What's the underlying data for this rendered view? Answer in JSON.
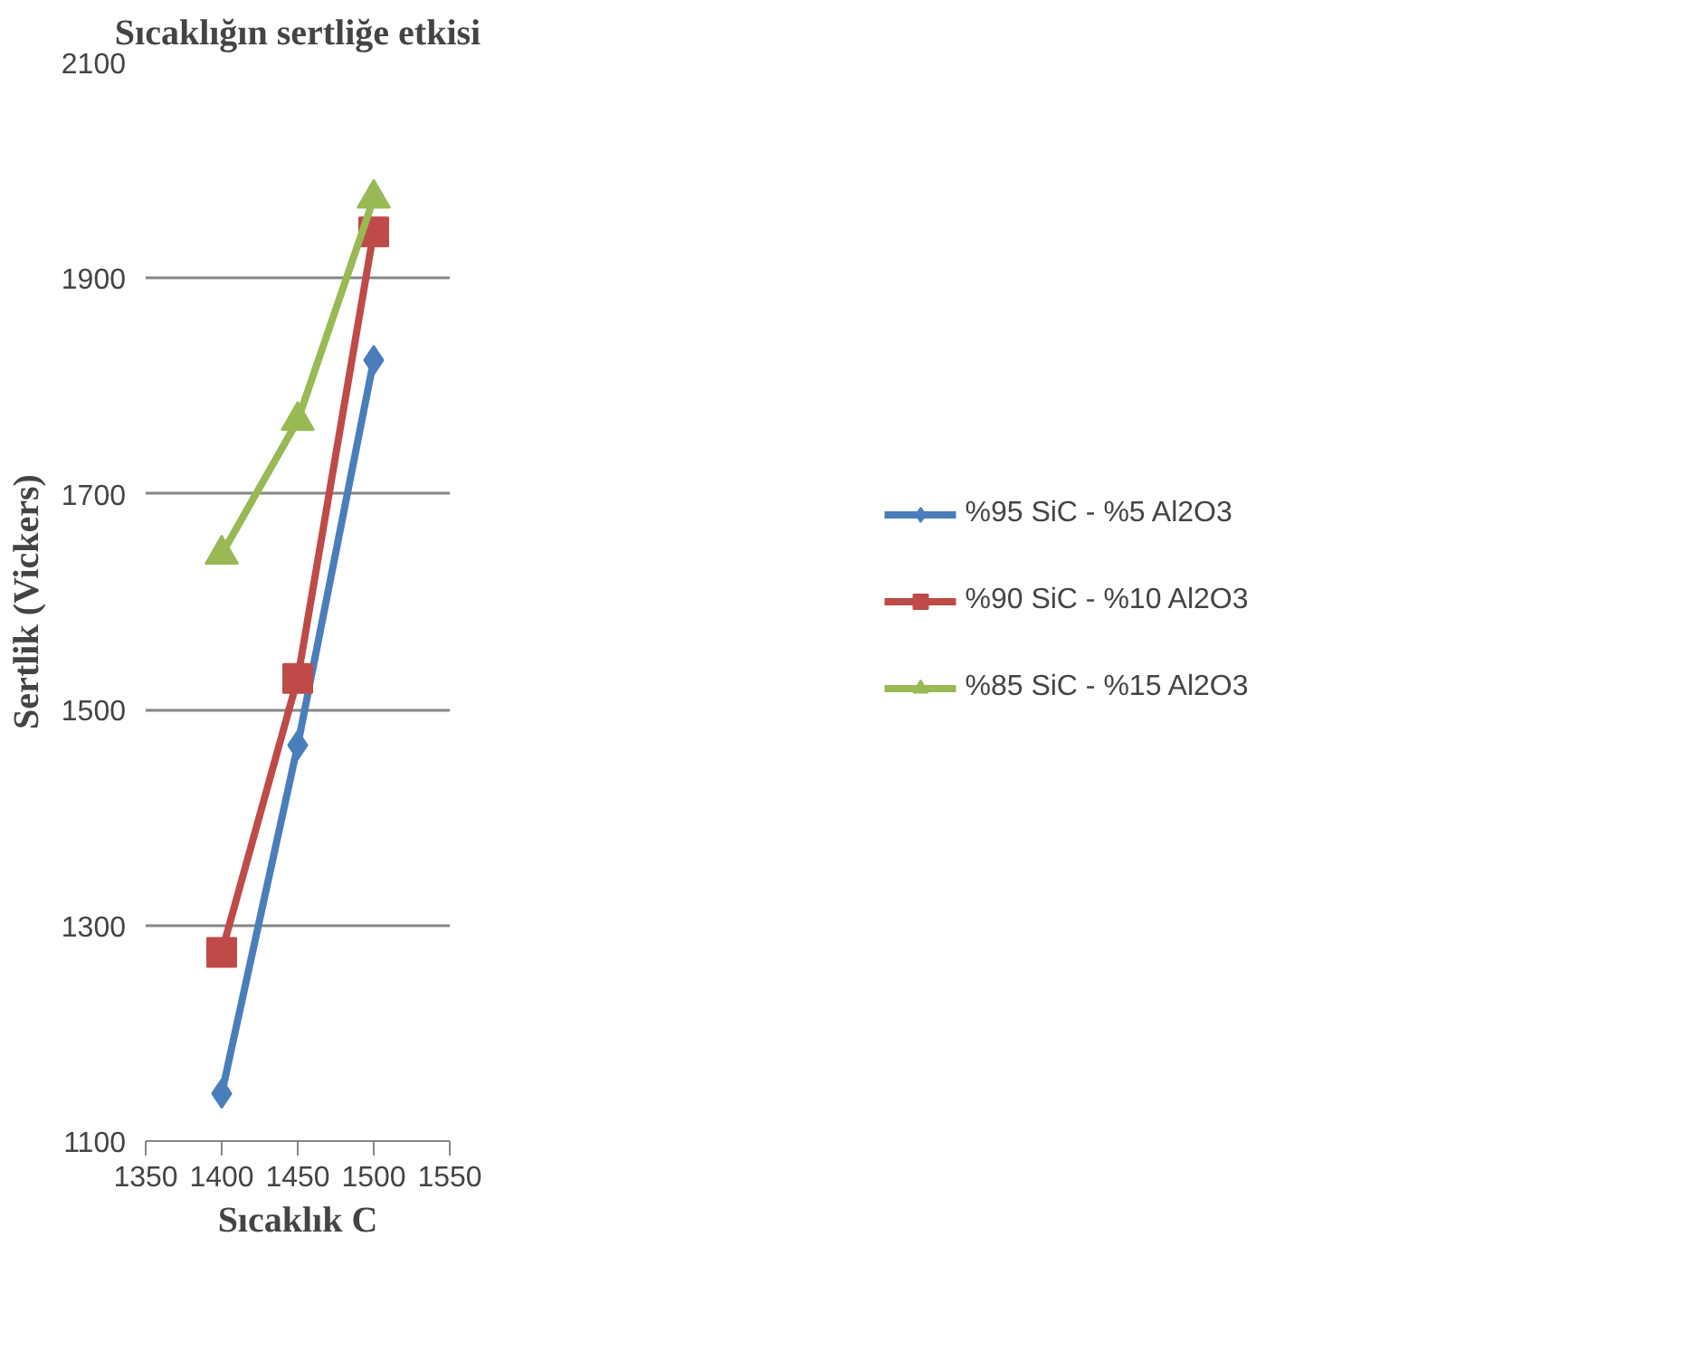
{
  "chart_data": {
    "type": "line",
    "title": "Sıcaklığın sertliğe etkisi",
    "xlabel": "Sıcaklık C",
    "ylabel": "Sertlik (Vickers)",
    "x": [
      1400,
      1450,
      1500
    ],
    "series": [
      {
        "name": "%95 SiC - %5 Al2O3",
        "color": "#4a7ebb",
        "values": [
          1144,
          1467,
          1824
        ],
        "marker": "diamond"
      },
      {
        "name": "%90 SiC - %10 Al2O3",
        "color": "#be4b48",
        "values": [
          1275,
          1529,
          1943
        ],
        "marker": "square"
      },
      {
        "name": "%85 SiC - %15 Al2O3",
        "color": "#98b954",
        "values": [
          1644,
          1768,
          1974
        ],
        "marker": "triangle"
      }
    ],
    "xlim": [
      1350,
      1550
    ],
    "xticks": [
      1350,
      1400,
      1450,
      1500,
      1550
    ],
    "ylim": [
      1100,
      2100
    ],
    "yticks": [
      1100,
      1300,
      1500,
      1700,
      1900,
      2100
    ],
    "grid": "y",
    "legend": "right",
    "line_style": "solid"
  }
}
